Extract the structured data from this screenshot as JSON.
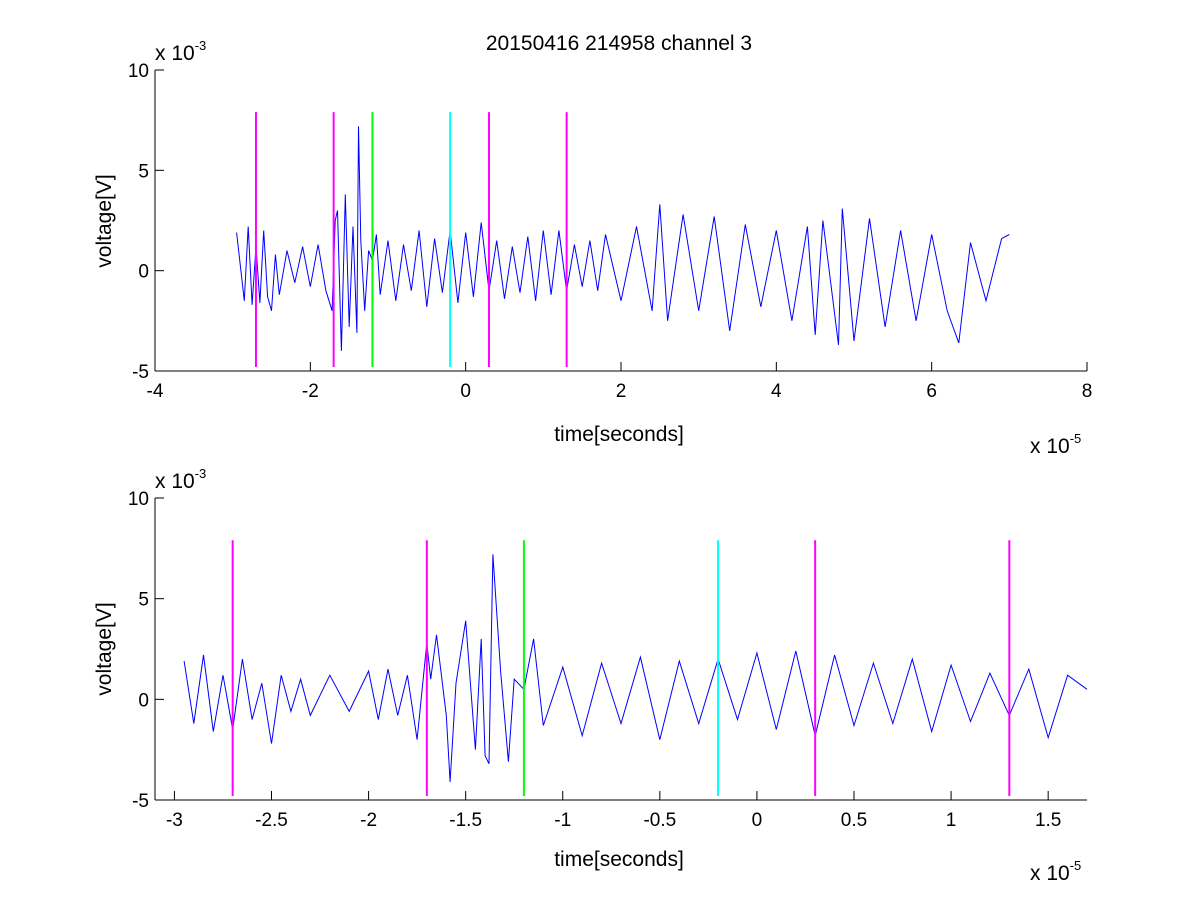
{
  "chart_data": [
    {
      "type": "line",
      "title": "20150416 214958 channel 3",
      "xlabel": "time[seconds]",
      "ylabel": "voltage[V]",
      "xlim": [
        -4e-05,
        8e-05
      ],
      "ylim": [
        -0.005,
        0.01
      ],
      "x_ticks": [
        -4,
        -2,
        0,
        2,
        4,
        6,
        8
      ],
      "x_tick_labels": [
        "-4",
        "-2",
        "0",
        "2",
        "4",
        "6",
        "8"
      ],
      "y_ticks": [
        -5,
        0,
        5,
        10
      ],
      "y_tick_labels": [
        "-5",
        "0",
        "5",
        "10"
      ],
      "x_multiplier": {
        "base": "x 10",
        "exponent": "-5"
      },
      "y_multiplier": {
        "base": "x 10",
        "exponent": "-3"
      },
      "grid": false,
      "series": [
        {
          "color": "#0000ff",
          "x": [
            -2.95e-05,
            -2.85e-05,
            -2.8e-05,
            -2.75e-05,
            -2.7e-05,
            -2.65e-05,
            -2.6e-05,
            -2.55e-05,
            -2.5e-05,
            -2.45e-05,
            -2.4e-05,
            -2.3e-05,
            -2.2e-05,
            -2.1e-05,
            -2e-05,
            -1.9e-05,
            -1.8e-05,
            -1.72e-05,
            -1.68e-05,
            -1.65e-05,
            -1.6e-05,
            -1.55e-05,
            -1.5e-05,
            -1.45e-05,
            -1.4e-05,
            -1.38e-05,
            -1.35e-05,
            -1.3e-05,
            -1.25e-05,
            -1.2e-05,
            -1.15e-05,
            -1.1e-05,
            -1e-05,
            -9e-06,
            -8e-06,
            -7e-06,
            -6e-06,
            -5e-06,
            -4e-06,
            -3e-06,
            -2e-06,
            -1e-06,
            0,
            1e-06,
            2e-06,
            3e-06,
            4e-06,
            5e-06,
            6e-06,
            7e-06,
            8e-06,
            9e-06,
            1e-05,
            1.1e-05,
            1.2e-05,
            1.3e-05,
            1.4e-05,
            1.5e-05,
            1.6e-05,
            1.7e-05,
            1.8e-05,
            2e-05,
            2.2e-05,
            2.4e-05,
            2.5e-05,
            2.6e-05,
            2.8e-05,
            3e-05,
            3.2e-05,
            3.4e-05,
            3.6e-05,
            3.8e-05,
            4e-05,
            4.2e-05,
            4.4e-05,
            4.5e-05,
            4.6e-05,
            4.8e-05,
            4.85e-05,
            5e-05,
            5.2e-05,
            5.4e-05,
            5.6e-05,
            5.8e-05,
            6e-05,
            6.2e-05,
            6.35e-05,
            6.5e-05,
            6.7e-05,
            6.9e-05,
            7e-05
          ],
          "y": [
            0.0019,
            -0.0015,
            0.0022,
            -0.0017,
            0.0012,
            -0.0016,
            0.002,
            -0.0013,
            -0.002,
            0.0008,
            -0.0012,
            0.001,
            -0.0006,
            0.0012,
            -0.0008,
            0.0013,
            -0.001,
            -0.002,
            0.0025,
            0.003,
            -0.004,
            0.0038,
            -0.0028,
            0.0022,
            -0.0031,
            0.0072,
            0.0015,
            -0.002,
            0.001,
            0.0005,
            0.0018,
            -0.0012,
            0.0015,
            -0.0015,
            0.0013,
            -0.001,
            0.002,
            -0.0018,
            0.0016,
            -0.0011,
            0.002,
            -0.0016,
            0.0019,
            -0.0013,
            0.0024,
            -0.001,
            0.0015,
            -0.0014,
            0.0012,
            -0.0011,
            0.0017,
            -0.0015,
            0.002,
            -0.0012,
            0.002,
            -0.001,
            0.0013,
            -0.0008,
            0.0015,
            -0.001,
            0.0018,
            -0.0015,
            0.0022,
            -0.002,
            0.0033,
            -0.0025,
            0.0028,
            -0.002,
            0.0027,
            -0.003,
            0.0023,
            -0.0018,
            0.002,
            -0.0025,
            0.0022,
            -0.0032,
            0.0025,
            -0.0037,
            0.0031,
            -0.0035,
            0.0026,
            -0.0028,
            0.002,
            -0.0025,
            0.0018,
            -0.002,
            -0.0036,
            0.0014,
            -0.0015,
            0.0016,
            0.0018
          ]
        }
      ],
      "markers": [
        {
          "x": -2.7e-05,
          "color": "#ff00ff"
        },
        {
          "x": -1.7e-05,
          "color": "#ff00ff"
        },
        {
          "x": -1.2e-05,
          "color": "#00ff00"
        },
        {
          "x": -2e-06,
          "color": "#00ffff"
        },
        {
          "x": 3e-06,
          "color": "#ff00ff"
        },
        {
          "x": 1.3e-05,
          "color": "#ff00ff"
        }
      ],
      "marker_ylim": [
        -0.0048,
        0.0079
      ]
    },
    {
      "type": "line",
      "xlabel": "time[seconds]",
      "ylabel": "voltage[V]",
      "xlim": [
        -3.1e-05,
        1.7e-05
      ],
      "ylim": [
        -0.005,
        0.01
      ],
      "x_ticks": [
        -3,
        -2.5,
        -2,
        -1.5,
        -1,
        -0.5,
        0,
        0.5,
        1,
        1.5
      ],
      "x_tick_labels": [
        "-3",
        "-2.5",
        "-2",
        "-1.5",
        "-1",
        "-0.5",
        "0",
        "0.5",
        "1",
        "1.5"
      ],
      "y_ticks": [
        -5,
        0,
        5,
        10
      ],
      "y_tick_labels": [
        "-5",
        "0",
        "5",
        "10"
      ],
      "x_multiplier": {
        "base": "x 10",
        "exponent": "-5"
      },
      "y_multiplier": {
        "base": "x 10",
        "exponent": "-3"
      },
      "grid": false,
      "series": [
        {
          "color": "#0000ff",
          "x": [
            -2.95e-05,
            -2.9e-05,
            -2.85e-05,
            -2.8e-05,
            -2.75e-05,
            -2.7e-05,
            -2.65e-05,
            -2.6e-05,
            -2.55e-05,
            -2.5e-05,
            -2.45e-05,
            -2.4e-05,
            -2.35e-05,
            -2.3e-05,
            -2.2e-05,
            -2.1e-05,
            -2e-05,
            -1.95e-05,
            -1.9e-05,
            -1.85e-05,
            -1.8e-05,
            -1.75e-05,
            -1.7e-05,
            -1.68e-05,
            -1.65e-05,
            -1.6e-05,
            -1.58e-05,
            -1.55e-05,
            -1.5e-05,
            -1.45e-05,
            -1.42e-05,
            -1.4e-05,
            -1.38e-05,
            -1.36e-05,
            -1.32e-05,
            -1.28e-05,
            -1.25e-05,
            -1.2e-05,
            -1.15e-05,
            -1.1e-05,
            -1e-05,
            -9e-06,
            -8e-06,
            -7e-06,
            -6e-06,
            -5e-06,
            -4e-06,
            -3e-06,
            -2e-06,
            -1e-06,
            0,
            1e-06,
            2e-06,
            3e-06,
            4e-06,
            5e-06,
            6e-06,
            7e-06,
            8e-06,
            9e-06,
            1e-05,
            1.1e-05,
            1.2e-05,
            1.3e-05,
            1.4e-05,
            1.5e-05,
            1.6e-05,
            1.7e-05
          ],
          "y": [
            0.0019,
            -0.0012,
            0.0022,
            -0.0016,
            0.0012,
            -0.0015,
            0.002,
            -0.001,
            0.0008,
            -0.0022,
            0.0012,
            -0.0006,
            0.001,
            -0.0008,
            0.0012,
            -0.0006,
            0.0014,
            -0.001,
            0.0015,
            -0.0008,
            0.0012,
            -0.002,
            0.0028,
            0.001,
            0.0032,
            -0.0008,
            -0.0041,
            0.0008,
            0.0039,
            -0.0025,
            0.003,
            -0.0028,
            -0.0032,
            0.0072,
            0.0014,
            -0.0031,
            0.001,
            0.0005,
            0.003,
            -0.0013,
            0.0016,
            -0.0018,
            0.0018,
            -0.0012,
            0.0021,
            -0.002,
            0.0019,
            -0.0012,
            0.002,
            -0.001,
            0.0023,
            -0.0015,
            0.0024,
            -0.0018,
            0.0022,
            -0.0013,
            0.0018,
            -0.0012,
            0.002,
            -0.0016,
            0.0017,
            -0.0011,
            0.0013,
            -0.0008,
            0.0015,
            -0.0019,
            0.0012,
            0.0005
          ]
        }
      ],
      "markers": [
        {
          "x": -2.7e-05,
          "color": "#ff00ff"
        },
        {
          "x": -1.7e-05,
          "color": "#ff00ff"
        },
        {
          "x": -1.2e-05,
          "color": "#00ff00"
        },
        {
          "x": -2e-06,
          "color": "#00ffff"
        },
        {
          "x": 3e-06,
          "color": "#ff00ff"
        },
        {
          "x": 1.3e-05,
          "color": "#ff00ff"
        }
      ],
      "marker_ylim": [
        -0.0048,
        0.0079
      ]
    }
  ]
}
